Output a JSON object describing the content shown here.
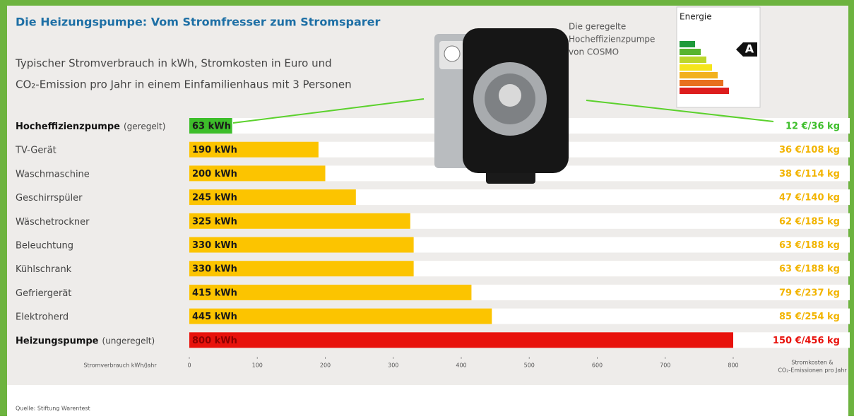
{
  "chart_data": {
    "type": "bar",
    "title": "Die Heizungspumpe: Vom Stromfresser zum Stromsparer",
    "subtitle_lines": [
      "Typischer Stromverbrauch in kWh, Stromkosten in Euro und",
      "CO₂-Emission pro Jahr in einem Einfamilienhaus mit 3 Personen"
    ],
    "categories": [
      "Hocheffizienzpumpe",
      "TV-Gerät",
      "Waschmaschine",
      "Geschirrspüler",
      "Wäschetrockner",
      "Beleuchtung",
      "Kühlschrank",
      "Gefriergerät",
      "Elektroherd",
      "Heizungspumpe"
    ],
    "category_notes": [
      "(geregelt)",
      null,
      null,
      null,
      null,
      null,
      null,
      null,
      null,
      "(ungeregelt)"
    ],
    "values": [
      63,
      190,
      200,
      245,
      325,
      330,
      330,
      415,
      445,
      800
    ],
    "value_labels": [
      "63 kWh",
      "190 kWh",
      "200 kWh",
      "245 kWh",
      "325 kWh",
      "330 kWh",
      "330 kWh",
      "415 kWh",
      "445 kWh",
      "800 kWh"
    ],
    "cost_labels": [
      "12 €/36 kg",
      "36 €/108 kg",
      "38 €/114 kg",
      "47 €/140 kg",
      "62 €/185 kg",
      "63 €/188 kg",
      "63 €/188 kg",
      "79 €/237 kg",
      "85 €/254 kg",
      "150 €/456 kg"
    ],
    "colors": [
      "#3dbe2a",
      "#fcc400",
      "#fcc400",
      "#fcc400",
      "#fcc400",
      "#fcc400",
      "#fcc400",
      "#fcc400",
      "#fcc400",
      "#e8120c"
    ],
    "xlim": [
      0,
      800
    ],
    "xticks": [
      0,
      100,
      200,
      300,
      400,
      500,
      600,
      700,
      800
    ],
    "x_label": "Stromverbrauch kWh/Jahr",
    "right_label_lines": [
      "Stromkosten &",
      "CO₂-Emissionen pro Jahr"
    ],
    "annotation_lines": [
      "Die geregelte",
      "Hocheffizienzpumpe",
      "von COSMO"
    ],
    "energy_label": {
      "title": "Energie",
      "class": "A"
    },
    "source": "Quelle: Stiftung Warentest"
  }
}
